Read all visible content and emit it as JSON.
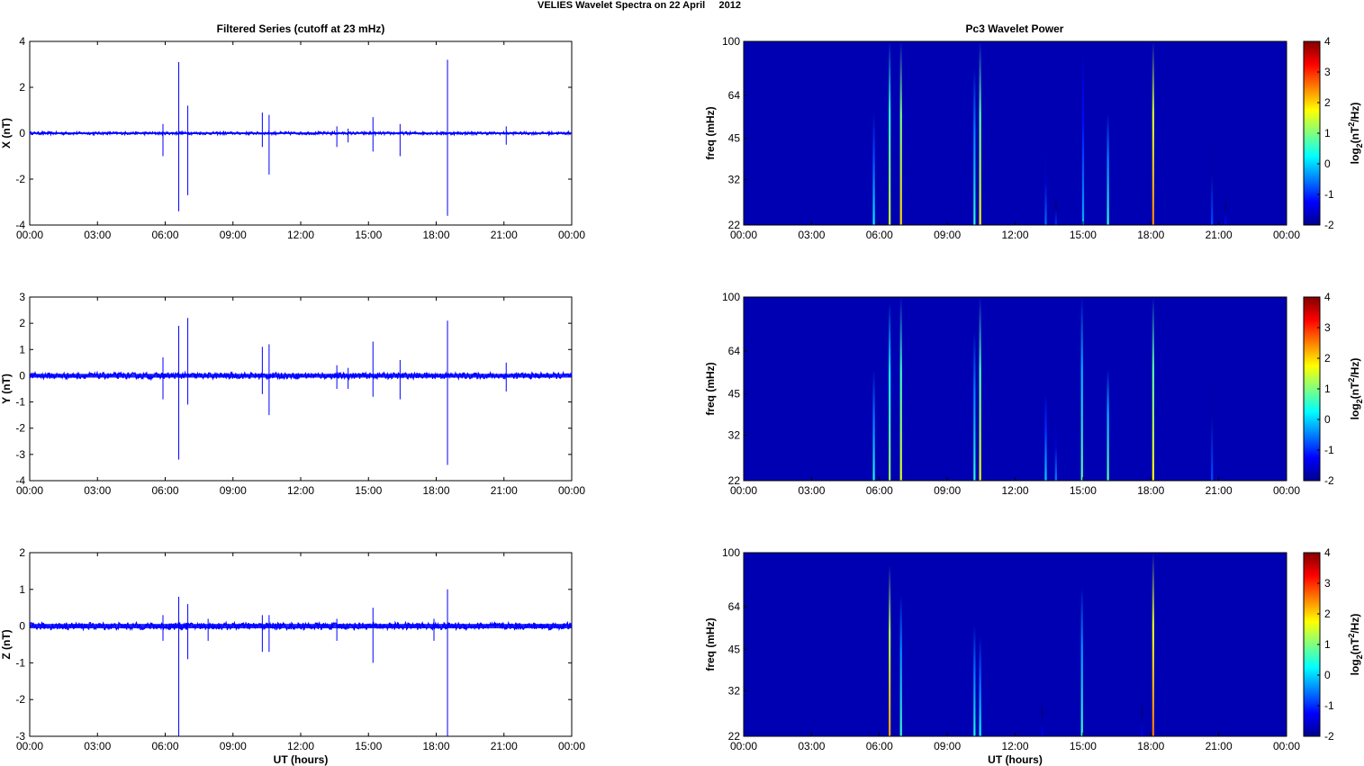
{
  "figure": {
    "title": "VELIES Wavelet Spectra on 22 April     2012",
    "left_column_title": "Filtered Series (cutoff at 23 mHz)",
    "right_column_title": "Pc3 Wavelet Power",
    "bottom_xlabel": "UT (hours)"
  },
  "chart_data": [
    {
      "type": "line",
      "panel": "X",
      "ylabel": "X (nT)",
      "ylim": [
        -4,
        4
      ],
      "yticks": [
        "4",
        "2",
        "0",
        "-2",
        "-4"
      ],
      "xlim_hours": [
        0,
        24
      ],
      "xticks": [
        "00:00",
        "03:00",
        "06:00",
        "09:00",
        "12:00",
        "15:00",
        "18:00",
        "21:00",
        "00:00"
      ],
      "baseline_noise_amplitude": 0.06,
      "series_color": "#0000ff",
      "spikes": [
        {
          "t": 5.9,
          "max": 0.4,
          "min": -1.0
        },
        {
          "t": 6.6,
          "max": 3.1,
          "min": -3.4
        },
        {
          "t": 7.0,
          "max": 1.2,
          "min": -2.7
        },
        {
          "t": 10.3,
          "max": 0.9,
          "min": -0.6
        },
        {
          "t": 10.6,
          "max": 0.8,
          "min": -1.8
        },
        {
          "t": 13.6,
          "max": 0.3,
          "min": -0.6
        },
        {
          "t": 14.1,
          "max": 0.2,
          "min": -0.4
        },
        {
          "t": 15.2,
          "max": 0.7,
          "min": -0.8
        },
        {
          "t": 16.4,
          "max": 0.4,
          "min": -1.0
        },
        {
          "t": 18.5,
          "max": 3.2,
          "min": -3.6
        },
        {
          "t": 21.1,
          "max": 0.3,
          "min": -0.5
        }
      ]
    },
    {
      "type": "line",
      "panel": "Y",
      "ylabel": "Y (nT)",
      "ylim": [
        -4,
        3
      ],
      "yticks": [
        "3",
        "2",
        "1",
        "0",
        "-1",
        "-2",
        "-3",
        "-4"
      ],
      "xlim_hours": [
        0,
        24
      ],
      "xticks": [
        "00:00",
        "03:00",
        "06:00",
        "09:00",
        "12:00",
        "15:00",
        "18:00",
        "21:00",
        "00:00"
      ],
      "baseline_noise_amplitude": 0.12,
      "series_color": "#0000ff",
      "spikes": [
        {
          "t": 5.9,
          "max": 0.7,
          "min": -0.9
        },
        {
          "t": 6.6,
          "max": 1.9,
          "min": -3.2
        },
        {
          "t": 7.0,
          "max": 2.2,
          "min": -1.1
        },
        {
          "t": 10.3,
          "max": 1.1,
          "min": -0.7
        },
        {
          "t": 10.6,
          "max": 1.2,
          "min": -1.5
        },
        {
          "t": 13.6,
          "max": 0.4,
          "min": -0.5
        },
        {
          "t": 14.1,
          "max": 0.3,
          "min": -0.5
        },
        {
          "t": 15.2,
          "max": 1.3,
          "min": -0.8
        },
        {
          "t": 16.4,
          "max": 0.6,
          "min": -0.9
        },
        {
          "t": 18.5,
          "max": 2.1,
          "min": -3.4
        },
        {
          "t": 21.1,
          "max": 0.5,
          "min": -0.6
        }
      ]
    },
    {
      "type": "line",
      "panel": "Z",
      "ylabel": "Z (nT)",
      "ylim": [
        -3,
        2
      ],
      "yticks": [
        "2",
        "1",
        "0",
        "-1",
        "-2",
        "-3"
      ],
      "xlim_hours": [
        0,
        24
      ],
      "xticks": [
        "00:00",
        "03:00",
        "06:00",
        "09:00",
        "12:00",
        "15:00",
        "18:00",
        "21:00",
        "00:00"
      ],
      "xlabel": "UT (hours)",
      "baseline_noise_amplitude": 0.1,
      "series_color": "#0000ff",
      "spikes": [
        {
          "t": 5.9,
          "max": 0.3,
          "min": -0.4
        },
        {
          "t": 6.6,
          "max": 0.8,
          "min": -3.0
        },
        {
          "t": 7.0,
          "max": 0.6,
          "min": -0.9
        },
        {
          "t": 7.9,
          "max": 0.2,
          "min": -0.4
        },
        {
          "t": 10.3,
          "max": 0.3,
          "min": -0.7
        },
        {
          "t": 10.6,
          "max": 0.3,
          "min": -0.7
        },
        {
          "t": 13.6,
          "max": 0.2,
          "min": -0.4
        },
        {
          "t": 15.2,
          "max": 0.5,
          "min": -1.0
        },
        {
          "t": 17.9,
          "max": 0.2,
          "min": -0.4
        },
        {
          "t": 18.5,
          "max": 1.0,
          "min": -3.0
        }
      ]
    },
    {
      "type": "heatmap",
      "panel": "X",
      "ylabel": "freq (mHz)",
      "yticks": [
        "100",
        "64",
        "45",
        "32",
        "22"
      ],
      "ylim_mhz": [
        22,
        100
      ],
      "xlim_hours": [
        0,
        24
      ],
      "xticks": [
        "00:00",
        "03:00",
        "06:00",
        "09:00",
        "12:00",
        "15:00",
        "18:00",
        "21:00",
        "00:00"
      ],
      "colorbar_label": "log2(nT^2/Hz)",
      "colorbar_ticks": [
        "4",
        "3",
        "2",
        "1",
        "0",
        "-1",
        "-2"
      ],
      "color_range": [
        -2,
        4
      ],
      "background_level": -1.7,
      "bursts": [
        {
          "t": 5.75,
          "level": 0.2,
          "fmax": 55
        },
        {
          "t": 6.45,
          "level": 1.5,
          "fmax": 100
        },
        {
          "t": 6.95,
          "level": 2.0,
          "fmax": 100
        },
        {
          "t": 10.2,
          "level": 0.5,
          "fmax": 80
        },
        {
          "t": 10.45,
          "level": 1.8,
          "fmax": 100
        },
        {
          "t": 13.35,
          "level": -0.6,
          "fmax": 40
        },
        {
          "t": 13.8,
          "level": -1.0,
          "fmax": 28
        },
        {
          "t": 15.0,
          "level": -0.2,
          "fmax": 90
        },
        {
          "t": 16.1,
          "level": 0.5,
          "fmax": 55
        },
        {
          "t": 18.1,
          "level": 2.5,
          "fmax": 100
        },
        {
          "t": 20.7,
          "level": -0.8,
          "fmax": 45
        },
        {
          "t": 21.3,
          "level": -1.2,
          "fmax": 28
        }
      ]
    },
    {
      "type": "heatmap",
      "panel": "Y",
      "ylabel": "freq (mHz)",
      "yticks": [
        "100",
        "64",
        "45",
        "32",
        "22"
      ],
      "ylim_mhz": [
        22,
        100
      ],
      "xlim_hours": [
        0,
        24
      ],
      "xticks": [
        "00:00",
        "03:00",
        "06:00",
        "09:00",
        "12:00",
        "15:00",
        "18:00",
        "21:00",
        "00:00"
      ],
      "colorbar_label": "log2(nT^2/Hz)",
      "colorbar_ticks": [
        "4",
        "3",
        "2",
        "1",
        "0",
        "-1",
        "-2"
      ],
      "color_range": [
        -2,
        4
      ],
      "background_level": -1.7,
      "bursts": [
        {
          "t": 5.75,
          "level": 0.4,
          "fmax": 55
        },
        {
          "t": 6.45,
          "level": 1.2,
          "fmax": 95
        },
        {
          "t": 6.95,
          "level": 1.6,
          "fmax": 100
        },
        {
          "t": 10.2,
          "level": 0.5,
          "fmax": 75
        },
        {
          "t": 10.45,
          "level": 1.7,
          "fmax": 100
        },
        {
          "t": 13.35,
          "level": 0.0,
          "fmax": 45
        },
        {
          "t": 13.8,
          "level": -0.5,
          "fmax": 35
        },
        {
          "t": 14.95,
          "level": 0.8,
          "fmax": 100
        },
        {
          "t": 16.1,
          "level": 0.8,
          "fmax": 55
        },
        {
          "t": 18.1,
          "level": 1.8,
          "fmax": 100
        },
        {
          "t": 20.7,
          "level": -0.8,
          "fmax": 55
        }
      ]
    },
    {
      "type": "heatmap",
      "panel": "Z",
      "ylabel": "freq (mHz)",
      "yticks": [
        "100",
        "64",
        "45",
        "32",
        "22"
      ],
      "ylim_mhz": [
        22,
        100
      ],
      "xlim_hours": [
        0,
        24
      ],
      "xticks": [
        "00:00",
        "03:00",
        "06:00",
        "09:00",
        "12:00",
        "15:00",
        "18:00",
        "21:00",
        "00:00"
      ],
      "xlabel": "UT (hours)",
      "colorbar_label": "log2(nT^2/Hz)",
      "colorbar_ticks": [
        "4",
        "3",
        "2",
        "1",
        "0",
        "-1",
        "-2"
      ],
      "color_range": [
        -2,
        4
      ],
      "background_level": -1.7,
      "bursts": [
        {
          "t": 6.45,
          "level": 2.3,
          "fmax": 90
        },
        {
          "t": 6.95,
          "level": 0.6,
          "fmax": 70
        },
        {
          "t": 10.2,
          "level": 0.4,
          "fmax": 55
        },
        {
          "t": 10.45,
          "level": 0.3,
          "fmax": 50
        },
        {
          "t": 14.95,
          "level": 0.6,
          "fmax": 75
        },
        {
          "t": 18.1,
          "level": 2.6,
          "fmax": 100
        },
        {
          "t": 13.2,
          "level": -1.3,
          "fmax": 30
        },
        {
          "t": 17.6,
          "level": -1.3,
          "fmax": 30
        }
      ]
    }
  ]
}
